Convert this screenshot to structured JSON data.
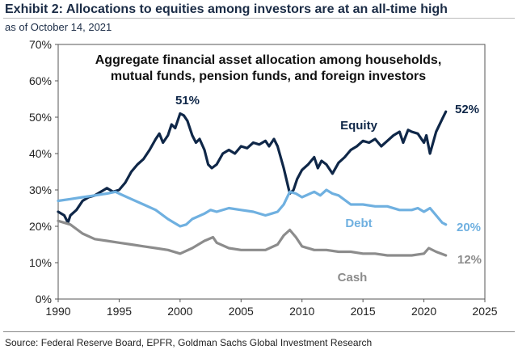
{
  "header": {
    "title": "Exhibit 2: Allocations to equities among investors are at an all-time high",
    "subtitle": "as of October 14, 2021"
  },
  "footer": {
    "source": "Source: Federal Reserve Board, EPFR, Goldman Sachs Global Investment Research"
  },
  "chart_data": {
    "type": "line",
    "title_lines": [
      "Aggregate financial asset allocation among households,",
      "mutual funds, pension funds, and foreign investors"
    ],
    "xlim": [
      1990,
      2025
    ],
    "ylim": [
      0,
      70
    ],
    "x_ticks": [
      1990,
      1995,
      2000,
      2005,
      2010,
      2015,
      2020,
      2025
    ],
    "x_tick_labels": [
      "1990",
      "1995",
      "2000",
      "2005",
      "2010",
      "2015",
      "2020",
      "2025"
    ],
    "y_ticks": [
      0,
      10,
      20,
      30,
      40,
      50,
      60,
      70
    ],
    "y_tick_labels": [
      "0%",
      "10%",
      "20%",
      "30%",
      "40%",
      "50%",
      "60%",
      "70%"
    ],
    "grid": false,
    "colors": {
      "Equity": "#0f2748",
      "Debt": "#6fb0e0",
      "Cash": "#8c8c8c"
    },
    "series": [
      {
        "name": "Equity",
        "x": [
          1990,
          1990.5,
          1990.8,
          1991,
          1991.5,
          1992,
          1992.5,
          1993,
          1993.5,
          1994,
          1994.5,
          1995,
          1995.5,
          1996,
          1996.5,
          1997,
          1997.5,
          1998,
          1998.3,
          1998.6,
          1999,
          1999.3,
          1999.6,
          2000,
          2000.3,
          2000.6,
          2001,
          2001.3,
          2001.6,
          2002,
          2002.3,
          2002.6,
          2003,
          2003.5,
          2004,
          2004.5,
          2005,
          2005.5,
          2006,
          2006.5,
          2007,
          2007.3,
          2007.7,
          2008,
          2008.5,
          2009,
          2009.3,
          2009.6,
          2010,
          2010.5,
          2011,
          2011.3,
          2011.6,
          2012,
          2012.5,
          2013,
          2013.5,
          2014,
          2014.5,
          2015,
          2015.5,
          2016,
          2016.5,
          2017,
          2017.5,
          2018,
          2018.3,
          2018.7,
          2019,
          2019.5,
          2020,
          2020.2,
          2020.5,
          2021,
          2021.5,
          2021.8
        ],
        "values": [
          24,
          23,
          21,
          23,
          24.5,
          27,
          28,
          28.5,
          29.5,
          30.5,
          29.5,
          30,
          32,
          35,
          37,
          38.5,
          41,
          44,
          45.5,
          43,
          45,
          48,
          47,
          51,
          50.5,
          49,
          45,
          43,
          44,
          41,
          37,
          36,
          37,
          40,
          41,
          40,
          42,
          41.5,
          43,
          42.5,
          43.5,
          42,
          44,
          42,
          36,
          29,
          30,
          33,
          35.5,
          37,
          39,
          36,
          38,
          37,
          34.5,
          37.5,
          39,
          41,
          42,
          43.5,
          43,
          44,
          42,
          43.5,
          45,
          46,
          43,
          46.5,
          46,
          45.5,
          43,
          45,
          40,
          46,
          49.5,
          51.5
        ]
      },
      {
        "name": "Debt",
        "x": [
          1990,
          1991,
          1992,
          1993,
          1994,
          1994.7,
          1995,
          1996,
          1997,
          1998,
          1999,
          1999.5,
          2000,
          2000.5,
          2001,
          2002,
          2002.5,
          2003,
          2004,
          2005,
          2006,
          2007,
          2007.5,
          2008,
          2008.5,
          2009,
          2009.5,
          2010,
          2011,
          2011.5,
          2012,
          2012.5,
          2013,
          2014,
          2015,
          2016,
          2017,
          2018,
          2019,
          2019.5,
          2020,
          2020.5,
          2021,
          2021.5,
          2021.8
        ],
        "values": [
          27,
          27.5,
          28,
          28.5,
          29,
          29.5,
          29,
          27.5,
          26,
          24.5,
          22,
          21,
          20,
          20.5,
          22,
          23.5,
          24.5,
          24,
          25,
          24.5,
          24,
          23,
          23.5,
          24,
          26,
          29.5,
          29,
          28,
          29.5,
          28.5,
          30,
          29,
          28.5,
          26,
          26,
          25.5,
          25.5,
          24.5,
          24.5,
          25,
          24,
          25,
          23,
          21,
          20.5
        ]
      },
      {
        "name": "Cash",
        "x": [
          1990,
          1991,
          1992,
          1993,
          1994,
          1995,
          1996,
          1997,
          1998,
          1999,
          2000,
          2001,
          2002,
          2002.7,
          2003,
          2004,
          2005,
          2006,
          2007,
          2008,
          2008.5,
          2009,
          2009.5,
          2010,
          2011,
          2012,
          2013,
          2014,
          2015,
          2016,
          2017,
          2018,
          2019,
          2020,
          2020.4,
          2021,
          2021.8
        ],
        "values": [
          21.5,
          20.5,
          18,
          16.5,
          16,
          15.5,
          15,
          14.5,
          14,
          13.5,
          12.5,
          14,
          16,
          17,
          15.5,
          14,
          13.5,
          13.5,
          13.5,
          15,
          17.5,
          19,
          17,
          14.5,
          13.5,
          13.5,
          13,
          13,
          12.5,
          12.5,
          12,
          12,
          12,
          12.5,
          14,
          13,
          12
        ]
      }
    ],
    "annotations": [
      {
        "text": "51%",
        "series": "Equity",
        "x": 2000,
        "y": 51
      },
      {
        "text": "52%",
        "series": "Equity",
        "x": 2021.8,
        "y": 51.5
      },
      {
        "text": "Equity",
        "series": "Equity"
      },
      {
        "text": "Debt",
        "series": "Debt"
      },
      {
        "text": "20%",
        "series": "Debt",
        "x": 2021.8,
        "y": 20.5
      },
      {
        "text": "12%",
        "series": "Cash",
        "x": 2021.8,
        "y": 12
      },
      {
        "text": "Cash",
        "series": "Cash"
      }
    ]
  }
}
